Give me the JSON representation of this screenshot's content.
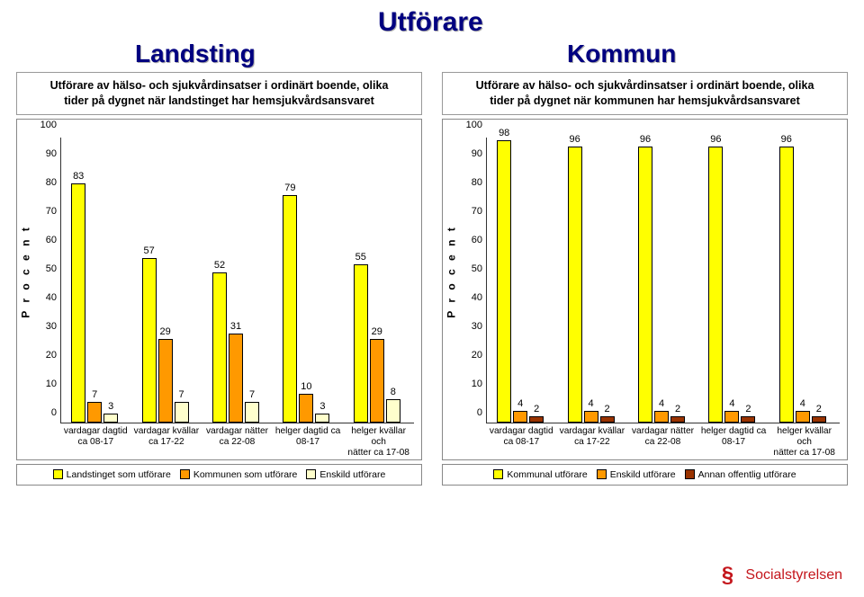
{
  "headings": {
    "center": "Utförare",
    "left": "Landsting",
    "right": "Kommun"
  },
  "footer": {
    "org": "Socialstyrelsen",
    "mark": "§"
  },
  "panels": [
    {
      "title_line1": "Utförare av hälso- och sjukvårdinsatser i ordinärt boende, olika",
      "title_line2": "tider på dygnet när landstinget har hemsjukvårdsansvaret",
      "ylabel": "P r o c e n t",
      "ylim": [
        0,
        100
      ],
      "ytick_step": 10,
      "categories": [
        "vardagar dagtid ca 08-17",
        "vardagar kvällar ca 17-22",
        "vardagar nätter ca 22-08",
        "helger dagtid ca 08-17",
        "helger kvällar och nätter ca 17-08"
      ],
      "categories_wrapped": [
        [
          "vardagar dagtid",
          "ca 08-17"
        ],
        [
          "vardagar kvällar",
          "ca 17-22"
        ],
        [
          "vardagar nätter",
          "ca 22-08"
        ],
        [
          "helger dagtid ca",
          "08-17"
        ],
        [
          "helger kvällar och",
          "nätter ca 17-08"
        ]
      ],
      "series": [
        {
          "label": "Landstinget som utförare",
          "color": "#ffff00",
          "values": [
            83,
            57,
            52,
            79,
            55
          ]
        },
        {
          "label": "Kommunen som utförare",
          "color": "#ff9900",
          "values": [
            7,
            29,
            31,
            10,
            29
          ]
        },
        {
          "label": "Enskild utförare",
          "color": "#ffffcc",
          "values": [
            3,
            7,
            7,
            3,
            8
          ]
        }
      ]
    },
    {
      "title_line1": "Utförare av hälso- och sjukvårdinsatser i ordinärt boende, olika",
      "title_line2": "tider på dygnet när kommunen har hemsjukvårdsansvaret",
      "ylabel": "P r o c e n t",
      "ylim": [
        0,
        100
      ],
      "ytick_step": 10,
      "categories": [
        "vardagar dagtid ca 08-17",
        "vardagar kvällar ca 17-22",
        "vardagar nätter ca 22-08",
        "helger dagtid ca 08-17",
        "helger kvällar och nätter ca 17-08"
      ],
      "categories_wrapped": [
        [
          "vardagar dagtid",
          "ca 08-17"
        ],
        [
          "vardagar kvällar",
          "ca 17-22"
        ],
        [
          "vardagar nätter",
          "ca 22-08"
        ],
        [
          "helger dagtid ca",
          "08-17"
        ],
        [
          "helger kvällar och",
          "nätter ca 17-08"
        ]
      ],
      "series": [
        {
          "label": "Kommunal utförare",
          "color": "#ffff00",
          "values": [
            98,
            96,
            96,
            96,
            96
          ]
        },
        {
          "label": "Enskild utförare",
          "color": "#ff9900",
          "values": [
            4,
            4,
            4,
            4,
            4
          ]
        },
        {
          "label": "Annan offentlig utförare",
          "color": "#993300",
          "values": [
            2,
            2,
            2,
            2,
            2
          ]
        }
      ]
    }
  ]
}
